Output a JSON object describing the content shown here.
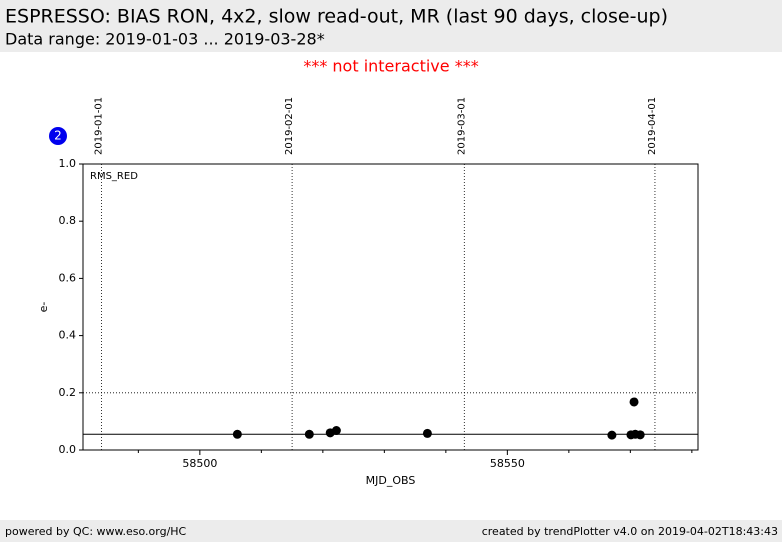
{
  "header": {
    "title": "ESPRESSO: BIAS RON, 4x2, slow read-out, MR (last 90 days, close-up)",
    "subtitle": "Data range: 2019-01-03 ... 2019-03-28*"
  },
  "notice": "*** not interactive ***",
  "badge": "2",
  "chart_data": {
    "type": "scatter",
    "annotation": "RMS_RED",
    "x_label": "MJD_OBS",
    "y_label": "e-",
    "x": [
      58506.1,
      58517.8,
      58521.2,
      58522.2,
      58537.0,
      58567.0,
      58570.1,
      58570.6,
      58570.8,
      58571.6
    ],
    "values": [
      0.055,
      0.055,
      0.06,
      0.068,
      0.058,
      0.052,
      0.053,
      0.168,
      0.055,
      0.053
    ],
    "color": "#000000",
    "xlim": [
      58481,
      58581
    ],
    "ylim": [
      0,
      1
    ],
    "xticks": [
      58500,
      58550
    ],
    "x_minor_ticks": [
      58490,
      58510,
      58520,
      58530,
      58540,
      58560,
      58570,
      58580
    ],
    "yticks": [
      {
        "value": 0,
        "label": "0.0"
      },
      0.2,
      0.4,
      0.6,
      0.8,
      {
        "value": 1,
        "label": "1.0"
      }
    ],
    "reference_line": 0.055,
    "threshold_line": 0.2,
    "date_markers": [
      {
        "x": 58484,
        "label": "2019-01-01"
      },
      {
        "x": 58515,
        "label": "2019-02-01"
      },
      {
        "x": 58543,
        "label": "2019-03-01"
      },
      {
        "x": 58574,
        "label": "2019-04-01"
      }
    ]
  },
  "footer": {
    "left": "powered by QC: www.eso.org/HC",
    "right": "created by trendPlotter v4.0 on 2019-04-02T18:43:43"
  }
}
